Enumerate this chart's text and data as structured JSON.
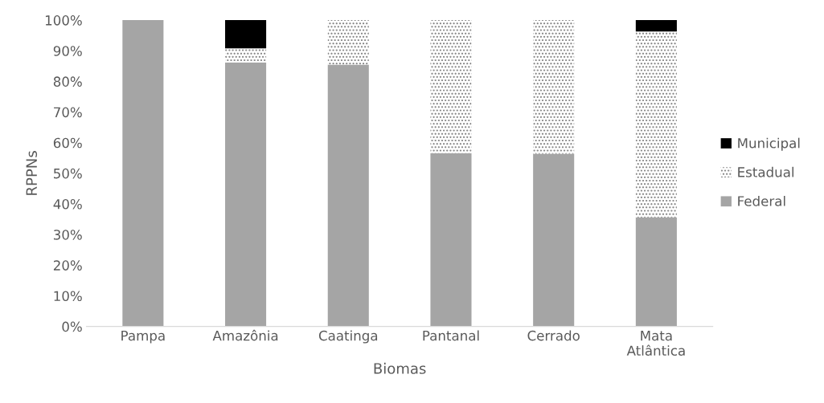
{
  "chart_data": {
    "type": "bar",
    "stacked": true,
    "xlabel": "Biomas",
    "ylabel": "RPPNs",
    "categories": [
      "Pampa",
      "Amazônia",
      "Caatinga",
      "Pantanal",
      "Cerrado",
      "Mata\nAtlântica"
    ],
    "series": [
      {
        "name": "Federal",
        "color": "#a5a5a5",
        "values": [
          100,
          86.2,
          85.5,
          56.6,
          56.4,
          35.6
        ]
      },
      {
        "name": "Estadual",
        "color": "#7f7f7f",
        "values": [
          0,
          4.6,
          14.5,
          43.4,
          43.6,
          60.7
        ]
      },
      {
        "name": "Municipal",
        "color": "#000000",
        "values": [
          0,
          9.2,
          0,
          0,
          0,
          3.7
        ]
      }
    ],
    "ylim": [
      0,
      100
    ],
    "yticks": [
      {
        "value": 0,
        "label": "0%"
      },
      {
        "value": 10,
        "label": "10%"
      },
      {
        "value": 20,
        "label": "20%"
      },
      {
        "value": 30,
        "label": "30%"
      },
      {
        "value": 40,
        "label": "40%"
      },
      {
        "value": 50,
        "label": "50%"
      },
      {
        "value": 60,
        "label": "60%"
      },
      {
        "value": 70,
        "label": "70%"
      },
      {
        "value": 80,
        "label": "80%"
      },
      {
        "value": 90,
        "label": "90%"
      },
      {
        "value": 100,
        "label": "100%"
      }
    ],
    "grid": false,
    "legend": "right"
  }
}
